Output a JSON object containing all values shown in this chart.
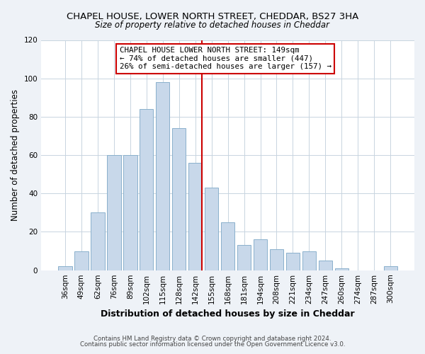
{
  "title": "CHAPEL HOUSE, LOWER NORTH STREET, CHEDDAR, BS27 3HA",
  "subtitle": "Size of property relative to detached houses in Cheddar",
  "xlabel": "Distribution of detached houses by size in Cheddar",
  "ylabel": "Number of detached properties",
  "bar_labels": [
    "36sqm",
    "49sqm",
    "62sqm",
    "76sqm",
    "89sqm",
    "102sqm",
    "115sqm",
    "128sqm",
    "142sqm",
    "155sqm",
    "168sqm",
    "181sqm",
    "194sqm",
    "208sqm",
    "221sqm",
    "234sqm",
    "247sqm",
    "260sqm",
    "274sqm",
    "287sqm",
    "300sqm"
  ],
  "bar_values": [
    2,
    10,
    30,
    60,
    60,
    84,
    98,
    74,
    56,
    43,
    25,
    13,
    16,
    11,
    9,
    10,
    5,
    1,
    0,
    0,
    2
  ],
  "bar_color": "#c8d8ea",
  "bar_edge_color": "#8ab0cc",
  "vline_color": "#cc0000",
  "legend_title": "CHAPEL HOUSE LOWER NORTH STREET: 149sqm",
  "legend_line1": "← 74% of detached houses are smaller (447)",
  "legend_line2": "26% of semi-detached houses are larger (157) →",
  "legend_box_edge_color": "#cc0000",
  "ylim": [
    0,
    120
  ],
  "yticks": [
    0,
    20,
    40,
    60,
    80,
    100,
    120
  ],
  "footer1": "Contains HM Land Registry data © Crown copyright and database right 2024.",
  "footer2": "Contains public sector information licensed under the Open Government Licence v3.0.",
  "bg_color": "#eef2f7",
  "plot_bg_color": "#ffffff",
  "grid_color": "#c8d4e0"
}
